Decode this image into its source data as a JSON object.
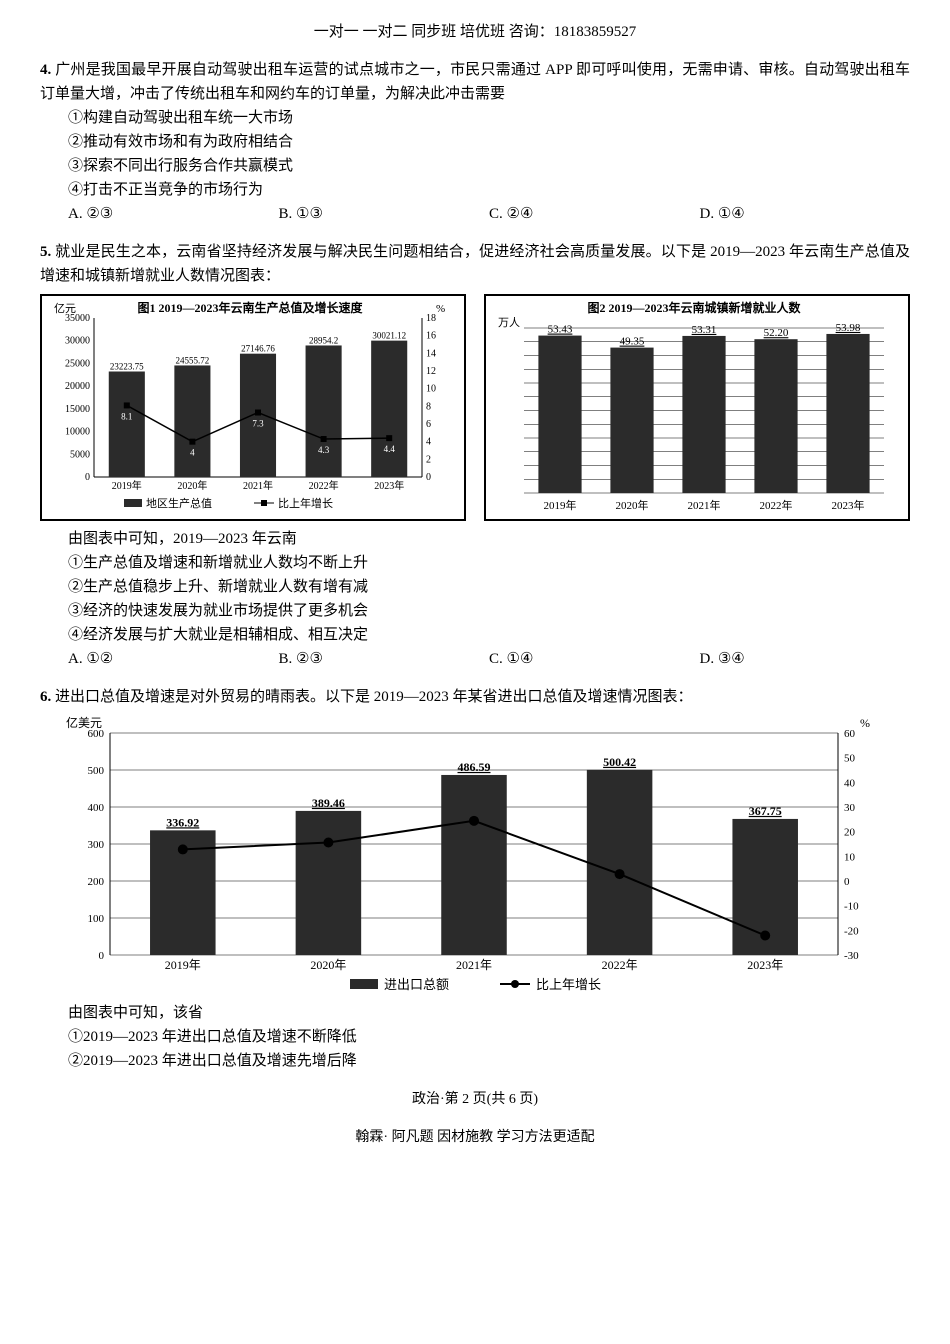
{
  "header": "一对一 一对二 同步班 培优班 咨询：18183859527",
  "q4": {
    "num": "4.",
    "stem": "广州是我国最早开展自动驾驶出租车运营的试点城市之一，市民只需通过 APP 即可呼叫使用，无需申请、审核。自动驾驶出租车订单量大增，冲击了传统出租车和网约车的订单量，为解决此冲击需要",
    "opts": [
      "①构建自动驾驶出租车统一大市场",
      "②推动有效市场和有为政府相结合",
      "③探索不同出行服务合作共赢模式",
      "④打击不正当竞争的市场行为"
    ],
    "choices": {
      "A": "A. ②③",
      "B": "B. ①③",
      "C": "C. ②④",
      "D": "D. ①④"
    }
  },
  "q5": {
    "num": "5.",
    "stem": "就业是民生之本，云南省坚持经济发展与解决民生问题相结合，促进经济社会高质量发展。以下是 2019—2023 年云南生产总值及增速和城镇新增就业人数情况图表：",
    "chart1": {
      "title": "图1 2019—2023年云南生产总值及增长速度",
      "y1_label": "亿元",
      "y2_label": "%",
      "y1_max": 35000,
      "y1_ticks": [
        0,
        5000,
        10000,
        15000,
        20000,
        25000,
        30000,
        35000
      ],
      "y2_max": 18,
      "y2_ticks": [
        0,
        2,
        4,
        6,
        8,
        10,
        12,
        14,
        16,
        18
      ],
      "categories": [
        "2019年",
        "2020年",
        "2021年",
        "2022年",
        "2023年"
      ],
      "bar_values": [
        23223.75,
        24555.72,
        27146.76,
        28954.2,
        30021.12
      ],
      "line_values": [
        8.1,
        4.0,
        7.3,
        4.3,
        4.4
      ],
      "bar_color": "#2b2b2b",
      "line_color": "#000",
      "legend": [
        "地区生产总值",
        "比上年增长"
      ]
    },
    "chart2": {
      "title": "图2 2019—2023年云南城镇新增就业人数",
      "y_label": "万人",
      "y_max": 56,
      "categories": [
        "2019年",
        "2020年",
        "2021年",
        "2022年",
        "2023年"
      ],
      "bar_values": [
        53.43,
        49.35,
        53.31,
        52.2,
        53.98
      ],
      "bar_labels": [
        "53.43",
        "49.35",
        "53.31",
        "52.20",
        "53.98"
      ],
      "bar_color": "#2b2b2b"
    },
    "lead": "由图表中可知，2019—2023 年云南",
    "opts": [
      "①生产总值及增速和新增就业人数均不断上升",
      "②生产总值稳步上升、新增就业人数有增有减",
      "③经济的快速发展为就业市场提供了更多机会",
      "④经济发展与扩大就业是相辅相成、相互决定"
    ],
    "choices": {
      "A": "A. ①②",
      "B": "B. ②③",
      "C": "C. ①④",
      "D": "D. ③④"
    }
  },
  "q6": {
    "num": "6.",
    "stem": "进出口总值及增速是对外贸易的晴雨表。以下是 2019—2023 年某省进出口总值及增速情况图表：",
    "chart": {
      "y1_label": "亿美元",
      "y2_label": "%",
      "y1_max": 600,
      "y1_ticks": [
        0,
        100,
        200,
        300,
        400,
        500,
        600
      ],
      "y2_ticks": [
        -30,
        -20,
        -10,
        0,
        10,
        20,
        30,
        40,
        50,
        60
      ],
      "categories": [
        "2019年",
        "2020年",
        "2021年",
        "2022年",
        "2023年"
      ],
      "bar_values": [
        336.92,
        389.46,
        486.59,
        500.42,
        367.75
      ],
      "line_values": [
        12.8,
        15.6,
        24.4,
        2.8,
        -22.1
      ],
      "bar_color": "#2b2b2b",
      "legend": [
        "进出口总额",
        "比上年增长"
      ]
    },
    "lead": "由图表中可知，该省",
    "opts": [
      "①2019—2023 年进出口总值及增速不断降低",
      "②2019—2023 年进出口总值及增速先增后降"
    ]
  },
  "footer1": "政治·第 2 页(共 6 页)",
  "footer2": "翰霖· 阿凡题 因材施教 学习方法更适配"
}
